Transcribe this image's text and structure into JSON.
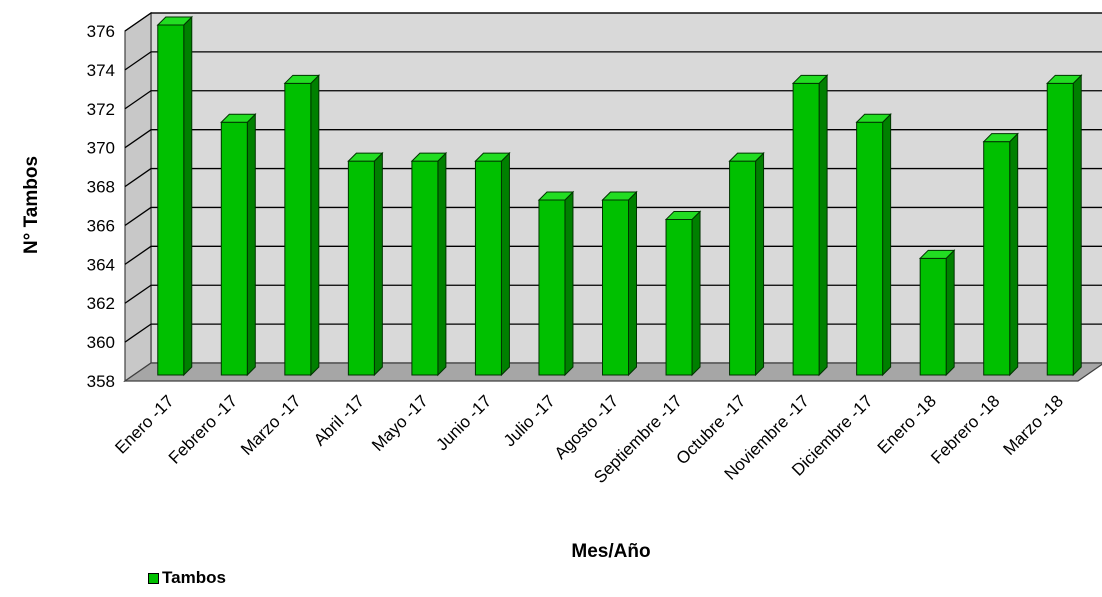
{
  "chart_data": {
    "type": "bar",
    "categories": [
      "Enero -17",
      "Febrero -17",
      "Marzo -17",
      "Abril -17",
      "Mayo -17",
      "Junio -17",
      "Julio -17",
      "Agosto -17",
      "Septiembre -17",
      "Octubre -17",
      "Noviembre -17",
      "Diciembre -17",
      "Enero -18",
      "Febrero  -18",
      "Marzo  -18"
    ],
    "series": [
      {
        "name": "Tambos",
        "values": [
          376,
          371,
          373,
          369,
          369,
          369,
          367,
          367,
          366,
          369,
          373,
          371,
          364,
          370,
          373
        ]
      }
    ],
    "xlabel": "Mes/Año",
    "ylabel": "N° Tambos",
    "ylim": [
      358,
      376
    ],
    "yticks": [
      358,
      360,
      362,
      364,
      366,
      368,
      370,
      372,
      374,
      376
    ],
    "grid": true,
    "legend_position": "bottom-left",
    "colors": {
      "bar_front": "#00c000",
      "bar_side": "#008000",
      "bar_top": "#22dd22",
      "wall": "#d9d9d9",
      "floor": "#a6a6a6"
    }
  }
}
